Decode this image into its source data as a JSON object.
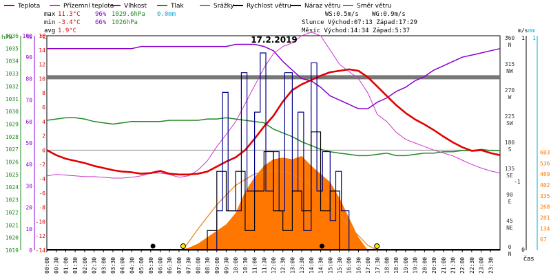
{
  "legend": [
    {
      "label": "Teplota",
      "color": "#e00000"
    },
    {
      "label": "Přízemní teplota",
      "color": "#cc33cc"
    },
    {
      "label": "Vlhkost",
      "color": "#8800cc"
    },
    {
      "label": "Tlak",
      "color": "#228822"
    },
    {
      "label": "Srážky",
      "color": "#00aadd"
    },
    {
      "label": "Rychlost větru",
      "color": "#000000"
    },
    {
      "label": "Náraz větru",
      "color": "#000088"
    },
    {
      "label": "Směr větru",
      "color": "#777777"
    }
  ],
  "stats": {
    "max_label": "max",
    "max_temp": "11.3°C",
    "max_hum": "96%",
    "max_press": "1029.6hPa",
    "max_rain": "0.0mm",
    "min_label": "min",
    "min_temp": "-3.4°C",
    "min_hum": "66%",
    "min_press": "1026hPa",
    "avg_label": "avg",
    "avg_temp": "1.9°C",
    "ws": "WS:0.5m/s",
    "wg": "WG:0.9m/s",
    "sun": "Slunce Východ:07:13  Západ:17:29",
    "moon": "Měsíc  Východ:14:34  Západ:5:37"
  },
  "colors": {
    "temp": "#e00000",
    "feels": "#cc33cc",
    "humidity": "#8800cc",
    "pressure": "#228822",
    "rain": "#00aadd",
    "wind": "#000000",
    "gust": "#000088",
    "direction": "#777777",
    "solar": "#ff7700",
    "sun_arc": "#ee8822",
    "sun_marker": "#ffee00"
  },
  "chart_data": {
    "type": "line",
    "title": "17.2.2019",
    "xlabel": "čas",
    "x_ticks": [
      "00:00",
      "00:30",
      "01:00",
      "01:30",
      "02:00",
      "02:30",
      "03:00",
      "03:30",
      "04:00",
      "04:30",
      "05:00",
      "05:30",
      "06:00",
      "06:30",
      "07:00",
      "07:30",
      "08:00",
      "08:30",
      "09:00",
      "09:30",
      "10:00",
      "10:30",
      "11:00",
      "11:30",
      "12:00",
      "12:30",
      "13:00",
      "13:30",
      "14:00",
      "14:30",
      "15:00",
      "15:30",
      "16:00",
      "16:30",
      "17:00",
      "17:30",
      "18:00",
      "18:30",
      "19:00",
      "19:30",
      "20:00",
      "20:30",
      "21:00",
      "21:30",
      "22:00",
      "22:30",
      "23:00",
      "23:30"
    ],
    "axes": {
      "pressure": {
        "unit": "hPa",
        "min": 1019,
        "max": 1036,
        "ticks": [
          1019,
          1020,
          1021,
          1022,
          1023,
          1024,
          1025,
          1026,
          1027,
          1028,
          1029,
          1030,
          1031,
          1032,
          1033,
          1034,
          1035,
          1036
        ]
      },
      "humidity": {
        "unit": "%",
        "min": 0,
        "max": 100,
        "ticks": [
          0,
          10,
          20,
          30,
          40,
          50,
          60,
          70,
          80,
          90,
          100
        ]
      },
      "temperature": {
        "unit": "°C",
        "min": -14,
        "max": 16,
        "ticks": [
          -14,
          -12,
          -10,
          -8,
          -6,
          -4,
          -2,
          0,
          2,
          4,
          6,
          8,
          10,
          12,
          14,
          16
        ]
      },
      "direction": {
        "unit": "°",
        "ticks": [
          {
            "v": 0,
            "n": "N"
          },
          {
            "v": 45,
            "n": "NE"
          },
          {
            "v": 90,
            "n": "E"
          },
          {
            "v": 135,
            "n": "SE"
          },
          {
            "v": 180,
            "n": "S"
          },
          {
            "v": 225,
            "n": "SW"
          },
          {
            "v": 270,
            "n": "W"
          },
          {
            "v": 315,
            "n": "NW"
          },
          {
            "v": 360,
            "n": "N"
          }
        ]
      },
      "wind": {
        "unit": "m/s",
        "min": 0,
        "max": 1,
        "ticks": [
          0,
          1
        ]
      },
      "rain": {
        "unit": "mm",
        "min": 0,
        "max": 1,
        "ticks": [
          0,
          1
        ]
      },
      "solar": {
        "ticks": [
          0,
          67,
          134,
          201,
          268,
          335,
          402,
          469,
          536,
          603
        ]
      }
    },
    "series": [
      {
        "name": "Teplota",
        "axis": "temperature",
        "x": [
          0,
          0.5,
          1,
          1.5,
          2,
          2.5,
          3,
          3.5,
          4,
          4.5,
          5,
          5.5,
          6,
          6.5,
          7,
          7.5,
          8,
          8.5,
          9,
          9.5,
          10,
          10.5,
          11,
          11.5,
          12,
          12.5,
          13,
          13.5,
          14,
          14.5,
          15,
          15.5,
          16,
          16.5,
          17,
          17.5,
          18,
          18.5,
          19,
          19.5,
          20,
          20.5,
          21,
          21.5,
          22,
          22.5,
          23,
          23.5,
          24
        ],
        "y": [
          0,
          -0.7,
          -1.2,
          -1.5,
          -1.8,
          -2.2,
          -2.5,
          -2.8,
          -3.0,
          -3.1,
          -3.3,
          -3.2,
          -2.9,
          -3.3,
          -3.4,
          -3.4,
          -3.3,
          -3.0,
          -2.3,
          -1.6,
          -1.0,
          0.0,
          1.6,
          3.3,
          4.8,
          6.8,
          8.4,
          9.2,
          9.8,
          10.4,
          10.9,
          11.1,
          11.3,
          11.1,
          10.2,
          8.9,
          7.6,
          6.3,
          5.2,
          4.3,
          3.6,
          2.8,
          1.9,
          1.1,
          0.4,
          -0.1,
          0.0,
          -0.4,
          -0.7
        ]
      },
      {
        "name": "Přízemní teplota",
        "axis": "temperature",
        "x": [
          0,
          0.5,
          1,
          1.5,
          2,
          2.5,
          3,
          3.5,
          4,
          4.5,
          5,
          5.5,
          6,
          6.5,
          7,
          7.5,
          8,
          8.5,
          9,
          9.5,
          10,
          10.5,
          11,
          11.5,
          12,
          12.5,
          13,
          13.5,
          14,
          14.5,
          15,
          15.5,
          16,
          16.5,
          17,
          17.5,
          18,
          18.5,
          19,
          19.5,
          20,
          20.5,
          21,
          21.5,
          22,
          22.5,
          23,
          23.5,
          24
        ],
        "y": [
          -3.6,
          -3.4,
          -3.5,
          -3.6,
          -3.7,
          -3.7,
          -3.8,
          -3.9,
          -3.9,
          -3.8,
          -3.6,
          -3.2,
          -3.2,
          -3.4,
          -3.8,
          -3.6,
          -2.8,
          -1.5,
          0.5,
          2.2,
          4.0,
          6.5,
          9.0,
          11.5,
          13.5,
          14.5,
          15.0,
          16.0,
          16.5,
          16.0,
          14.0,
          12.0,
          11.0,
          10.0,
          8.0,
          5.0,
          4.0,
          2.5,
          1.5,
          1.0,
          0.5,
          0.0,
          -0.4,
          -0.8,
          -1.4,
          -2.0,
          -2.5,
          -2.9,
          -3.2
        ]
      },
      {
        "name": "Vlhkost",
        "axis": "humidity",
        "x": [
          0,
          0.5,
          1,
          1.5,
          2,
          2.5,
          3,
          3.5,
          4,
          4.5,
          5,
          5.5,
          6,
          6.5,
          7,
          7.5,
          8,
          8.5,
          9,
          9.5,
          10,
          10.5,
          11,
          11.5,
          12,
          12.5,
          13,
          13.5,
          14,
          14.5,
          15,
          15.5,
          16,
          16.5,
          17,
          17.5,
          18,
          18.5,
          19,
          19.5,
          20,
          20.5,
          21,
          21.5,
          22,
          22.5,
          23,
          23.5,
          24
        ],
        "y": [
          94,
          94,
          94,
          94,
          94,
          94,
          94,
          94,
          94,
          94,
          95,
          95,
          95,
          95,
          95,
          95,
          95,
          95,
          95,
          95,
          96,
          96,
          96,
          95,
          93,
          88,
          84,
          80,
          79,
          76,
          72,
          70,
          68,
          66,
          66,
          69,
          71,
          74,
          76,
          79,
          81,
          84,
          86,
          88,
          90,
          91,
          92,
          93,
          94
        ]
      },
      {
        "name": "Tlak",
        "axis": "pressure",
        "x": [
          0,
          0.5,
          1,
          1.5,
          2,
          2.5,
          3,
          3.5,
          4,
          4.5,
          5,
          5.5,
          6,
          6.5,
          7,
          7.5,
          8,
          8.5,
          9,
          9.5,
          10,
          10.5,
          11,
          11.5,
          12,
          12.5,
          13,
          13.5,
          14,
          14.5,
          15,
          15.5,
          16,
          16.5,
          17,
          17.5,
          18,
          18.5,
          19,
          19.5,
          20,
          20.5,
          21,
          21.5,
          22,
          22.5,
          23,
          23.5,
          24
        ],
        "y": [
          1029.3,
          1029.4,
          1029.5,
          1029.5,
          1029.4,
          1029.2,
          1029.1,
          1029.0,
          1029.1,
          1029.2,
          1029.2,
          1029.2,
          1029.2,
          1029.3,
          1029.3,
          1029.3,
          1029.3,
          1029.4,
          1029.4,
          1029.5,
          1029.4,
          1029.3,
          1029.2,
          1029.1,
          1028.6,
          1028.3,
          1028.0,
          1027.6,
          1027.3,
          1027.0,
          1026.8,
          1026.7,
          1026.6,
          1026.5,
          1026.5,
          1026.6,
          1026.7,
          1026.5,
          1026.5,
          1026.6,
          1026.7,
          1026.7,
          1026.8,
          1026.8,
          1026.9,
          1026.9,
          1027.0,
          1026.9,
          1026.9
        ]
      },
      {
        "name": "Náraz větru",
        "axis": "wind",
        "x": [
          9,
          9.3,
          9.6,
          10,
          10.3,
          10.6,
          11,
          11.3,
          11.6,
          12,
          12.3,
          12.6,
          13,
          13.3,
          13.6,
          14,
          14.3,
          14.6,
          15,
          15.3,
          15.6,
          16
        ],
        "y": [
          0.2,
          0.8,
          0.2,
          0.2,
          0.9,
          0.3,
          0.7,
          1.0,
          0.3,
          0.5,
          0.2,
          0.9,
          0.3,
          0.7,
          0.1,
          0.95,
          0.3,
          0.5,
          0.15,
          0.4,
          0.2,
          0.0
        ]
      },
      {
        "name": "Rychlost větru",
        "axis": "wind",
        "x": [
          8.5,
          9,
          9.5,
          10,
          10.5,
          11,
          11.5,
          12,
          12.5,
          13,
          13.5,
          14,
          14.5,
          15,
          15.5
        ],
        "y": [
          0.1,
          0.4,
          0.2,
          0.4,
          0.1,
          0.3,
          0.5,
          0.2,
          0.1,
          0.3,
          0.2,
          0.6,
          0.2,
          0.3,
          0.0
        ]
      },
      {
        "name": "Směr větru",
        "axis": "direction",
        "x": [
          0,
          24
        ],
        "y": [
          298,
          298
        ]
      },
      {
        "name": "Srážky",
        "axis": "rain",
        "x": [
          0,
          24
        ],
        "y": [
          0,
          0
        ]
      }
    ],
    "solar": {
      "axis": "solar",
      "x": [
        7.0,
        7.5,
        8.0,
        8.5,
        9.0,
        9.5,
        10.0,
        10.5,
        11.0,
        11.5,
        12.0,
        12.5,
        13.0,
        13.5,
        14.0,
        14.5,
        15.0,
        15.5,
        16.0,
        16.5,
        17.0
      ],
      "y": [
        0,
        15,
        40,
        80,
        120,
        160,
        230,
        360,
        450,
        520,
        560,
        570,
        560,
        580,
        520,
        470,
        420,
        320,
        200,
        80,
        0
      ]
    },
    "sun_curve": {
      "axis": "solar",
      "x": [
        7.2,
        8,
        9,
        10,
        11,
        12,
        13,
        14,
        15,
        16,
        17,
        17.5
      ],
      "y": [
        0,
        130,
        280,
        400,
        470,
        490,
        470,
        400,
        290,
        150,
        30,
        0
      ]
    },
    "sun_events": [
      {
        "x": 7.22,
        "label": "07:13"
      },
      {
        "x": 17.48,
        "label": "17:29"
      }
    ],
    "moon_events": [
      {
        "x": 5.62,
        "label": "5:37"
      },
      {
        "x": 14.57,
        "label": "14:34"
      }
    ]
  }
}
